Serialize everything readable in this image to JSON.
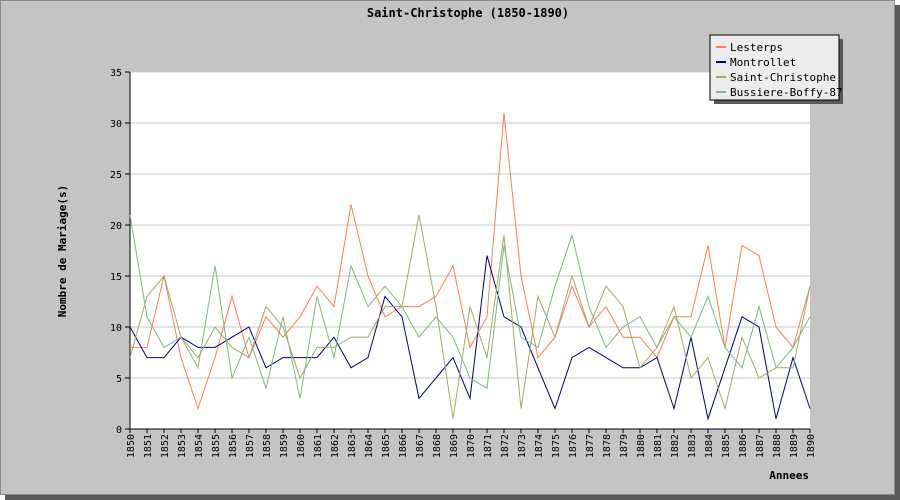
{
  "chart_data": {
    "type": "line",
    "title": "Saint-Christophe (1850-1890)",
    "xlabel": "Annees",
    "ylabel": "Nombre de Mariage(s)",
    "ylim": [
      0,
      35
    ],
    "yticks": [
      0,
      5,
      10,
      15,
      20,
      25,
      30,
      35
    ],
    "grid": "horizontal",
    "legend_position": "top-right",
    "x": [
      "1850",
      "1851",
      "1852",
      "1853",
      "1854",
      "1855",
      "1856",
      "1857",
      "1858",
      "1859",
      "1860",
      "1861",
      "1862",
      "1863",
      "1864",
      "1865",
      "1866",
      "1867",
      "1868",
      "1869",
      "1870",
      "1871",
      "1872",
      "1873",
      "1874",
      "1875",
      "1876",
      "1877",
      "1878",
      "1879",
      "1880",
      "1881",
      "1882",
      "1883",
      "1884",
      "1885",
      "1886",
      "1887",
      "1888",
      "1889",
      "1890"
    ],
    "series": [
      {
        "name": "Lesterps",
        "color": "#ff7f50",
        "values": [
          8,
          8,
          15,
          7,
          2,
          7,
          13,
          7,
          11,
          9,
          11,
          14,
          12,
          22,
          15,
          11,
          12,
          12,
          13,
          16,
          8,
          11,
          31,
          15,
          7,
          9,
          14,
          10,
          12,
          9,
          9,
          7,
          11,
          11,
          18,
          8,
          18,
          17,
          10,
          8,
          14
        ]
      },
      {
        "name": "Montrollet",
        "color": "#000080",
        "values": [
          10,
          7,
          7,
          9,
          8,
          8,
          9,
          10,
          6,
          7,
          7,
          7,
          9,
          6,
          7,
          13,
          11,
          3,
          5,
          7,
          3,
          17,
          11,
          10,
          6,
          2,
          7,
          8,
          7,
          6,
          6,
          7,
          2,
          9,
          1,
          6,
          11,
          10,
          1,
          7,
          2
        ]
      },
      {
        "name": "Saint-Christophe",
        "color": "#a8a868",
        "values": [
          7,
          13,
          15,
          9,
          7,
          10,
          8,
          7,
          12,
          10,
          5,
          8,
          8,
          9,
          9,
          12,
          12,
          21,
          12,
          1,
          12,
          7,
          19,
          2,
          13,
          9,
          15,
          10,
          14,
          12,
          6,
          8,
          12,
          5,
          7,
          2,
          9,
          5,
          6,
          6,
          14
        ]
      },
      {
        "name": "Bussiere-Boffy-87",
        "color": "#80b880",
        "values": [
          21,
          11,
          8,
          9,
          6,
          16,
          5,
          9,
          4,
          11,
          3,
          13,
          7,
          16,
          12,
          14,
          12,
          9,
          11,
          9,
          5,
          4,
          18,
          9,
          8,
          14,
          19,
          12,
          8,
          10,
          11,
          8,
          11,
          9,
          13,
          8,
          6,
          12,
          6,
          8,
          11
        ]
      }
    ]
  }
}
